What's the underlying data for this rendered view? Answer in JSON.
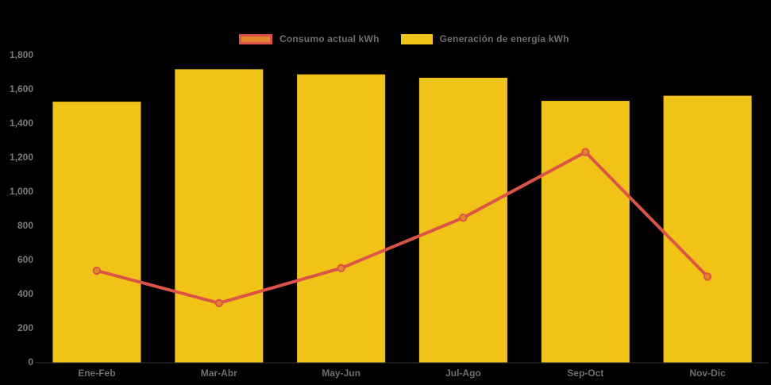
{
  "background_color": "#000000",
  "colors": {
    "bar": "#F0C417",
    "line": "#DD5348",
    "marker": "#E1862E",
    "axis_text": "#7B7B7B",
    "legend_text": "#6E6E6E",
    "axis_line": "#333333"
  },
  "legend": {
    "items": [
      {
        "label": "Consumo actual kWh",
        "swatch": "line-marker"
      },
      {
        "label": "Generación de energía kWh",
        "swatch": "bar"
      }
    ]
  },
  "chart_data": {
    "type": "bar",
    "title": "",
    "xlabel": "",
    "ylabel": "",
    "categories": [
      "Ene-Feb",
      "Mar-Abr",
      "May-Jun",
      "Jul-Ago",
      "Sep-Oct",
      "Nov-Dic"
    ],
    "series": [
      {
        "name": "Generación de energía kWh",
        "type": "bar",
        "color": "#F0C417",
        "values": [
          1525,
          1715,
          1685,
          1665,
          1530,
          1560
        ]
      },
      {
        "name": "Consumo actual kWh",
        "type": "line",
        "color": "#DD5348",
        "marker_color": "#E1862E",
        "values": [
          535,
          345,
          550,
          845,
          1230,
          500
        ]
      }
    ],
    "ylim": [
      0,
      1800
    ],
    "ytick_step": 200,
    "ytick_format": "thousands-comma",
    "grid": false,
    "legend_position": "top-center"
  }
}
